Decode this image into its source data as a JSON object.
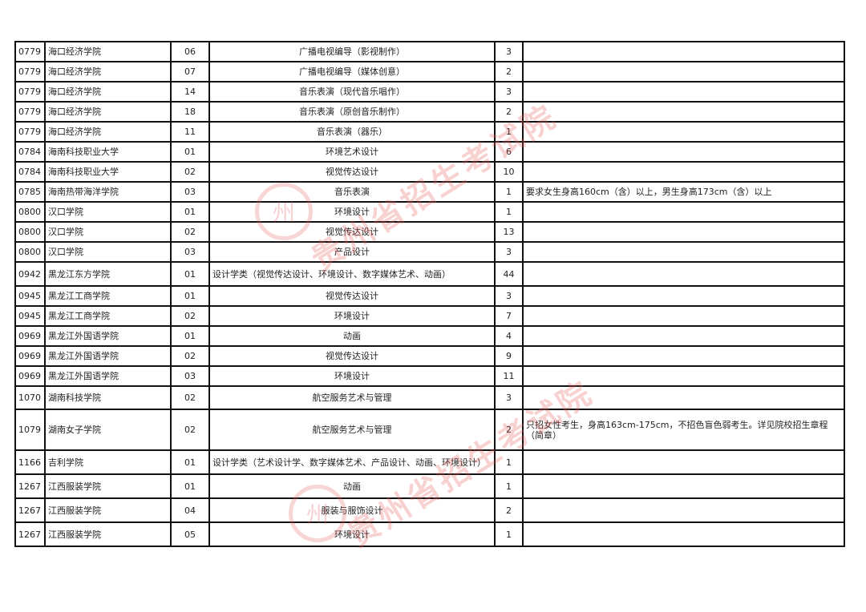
{
  "watermark": {
    "text": "贵州省招生考试院",
    "seal_glyph": "州",
    "color": "#e65a5a"
  },
  "rows": [
    [
      "0779",
      "海口经济学院",
      "06",
      "广播电视编导（影视制作）",
      "3",
      ""
    ],
    [
      "0779",
      "海口经济学院",
      "07",
      "广播电视编导（媒体创意）",
      "2",
      ""
    ],
    [
      "0779",
      "海口经济学院",
      "14",
      "音乐表演（现代音乐唱作）",
      "3",
      ""
    ],
    [
      "0779",
      "海口经济学院",
      "18",
      "音乐表演（原创音乐制作）",
      "2",
      ""
    ],
    [
      "0779",
      "海口经济学院",
      "11",
      "音乐表演（器乐）",
      "1",
      ""
    ],
    [
      "0784",
      "海南科技职业大学",
      "01",
      "环境艺术设计",
      "6",
      ""
    ],
    [
      "0784",
      "海南科技职业大学",
      "02",
      "视觉传达设计",
      "10",
      ""
    ],
    [
      "0785",
      "海南热带海洋学院",
      "03",
      "音乐表演",
      "1",
      "要求女生身高160cm（含）以上，男生身高173cm（含）以上"
    ],
    [
      "0800",
      "汉口学院",
      "01",
      "环境设计",
      "1",
      ""
    ],
    [
      "0800",
      "汉口学院",
      "02",
      "视觉传达设计",
      "13",
      ""
    ],
    [
      "0800",
      "汉口学院",
      "03",
      "产品设计",
      "3",
      ""
    ],
    [
      "0942",
      "黑龙江东方学院",
      "01",
      "设计学类（视觉传达设计、环境设计、数字媒体艺术、动画）",
      "44",
      ""
    ],
    [
      "0945",
      "黑龙江工商学院",
      "01",
      "视觉传达设计",
      "3",
      ""
    ],
    [
      "0945",
      "黑龙江工商学院",
      "02",
      "环境设计",
      "7",
      ""
    ],
    [
      "0969",
      "黑龙江外国语学院",
      "01",
      "动画",
      "4",
      ""
    ],
    [
      "0969",
      "黑龙江外国语学院",
      "02",
      "视觉传达设计",
      "9",
      ""
    ],
    [
      "0969",
      "黑龙江外国语学院",
      "03",
      "环境设计",
      "11",
      ""
    ],
    [
      "1070",
      "湖南科技学院",
      "02",
      "航空服务艺术与管理",
      "3",
      ""
    ],
    [
      "1079",
      "湖南女子学院",
      "02",
      "航空服务艺术与管理",
      "2",
      "只招女性考生，身高163cm-175cm，不招色盲色弱考生。详见院校招生章程（简章）"
    ],
    [
      "1166",
      "吉利学院",
      "01",
      "设计学类（艺术设计学、数字媒体艺术、产品设计、动画、环境设计）",
      "1",
      ""
    ],
    [
      "1267",
      "江西服装学院",
      "01",
      "动画",
      "1",
      ""
    ],
    [
      "1267",
      "江西服装学院",
      "04",
      "服装与服饰设计",
      "2",
      ""
    ],
    [
      "1267",
      "江西服装学院",
      "05",
      "环境设计",
      "1",
      ""
    ]
  ]
}
